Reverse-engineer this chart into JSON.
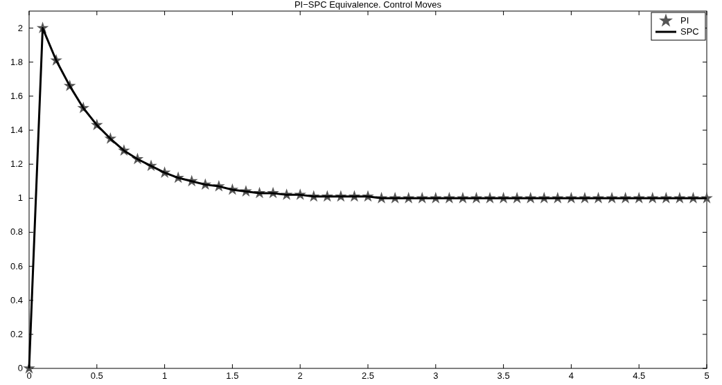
{
  "chart_data": {
    "type": "line",
    "title": "PI−SPC Equivalence. Control Moves",
    "x": [
      0,
      0.1,
      0.2,
      0.3,
      0.4,
      0.5,
      0.6,
      0.7,
      0.8,
      0.9,
      1,
      1.1,
      1.2,
      1.3,
      1.4,
      1.5,
      1.6,
      1.7,
      1.8,
      1.9,
      2,
      2.1,
      2.2,
      2.3,
      2.4,
      2.5,
      2.6,
      2.7,
      2.8,
      2.9,
      3,
      3.1,
      3.2,
      3.3,
      3.4,
      3.5,
      3.6,
      3.7,
      3.8,
      3.9,
      4,
      4.1,
      4.2,
      4.3,
      4.4,
      4.5,
      4.6,
      4.7,
      4.8,
      4.9,
      5
    ],
    "series": [
      {
        "name": "PI",
        "type": "scatter",
        "marker": "star",
        "color": "#555555",
        "values": [
          0,
          2,
          1.81,
          1.66,
          1.53,
          1.43,
          1.35,
          1.28,
          1.23,
          1.19,
          1.15,
          1.12,
          1.1,
          1.08,
          1.07,
          1.05,
          1.04,
          1.03,
          1.03,
          1.02,
          1.02,
          1.01,
          1.01,
          1.01,
          1.01,
          1.01,
          1,
          1,
          1,
          1,
          1,
          1,
          1,
          1,
          1,
          1,
          1,
          1,
          1,
          1,
          1,
          1,
          1,
          1,
          1,
          1,
          1,
          1,
          1,
          1,
          1
        ]
      },
      {
        "name": "SPC",
        "line_style": "solid",
        "color": "#000000",
        "values": [
          0,
          2,
          1.81,
          1.66,
          1.53,
          1.43,
          1.35,
          1.28,
          1.23,
          1.19,
          1.15,
          1.12,
          1.1,
          1.08,
          1.07,
          1.05,
          1.04,
          1.03,
          1.03,
          1.02,
          1.02,
          1.01,
          1.01,
          1.01,
          1.01,
          1.01,
          1,
          1,
          1,
          1,
          1,
          1,
          1,
          1,
          1,
          1,
          1,
          1,
          1,
          1,
          1,
          1,
          1,
          1,
          1,
          1,
          1,
          1,
          1,
          1,
          1
        ]
      }
    ],
    "xlim": [
      0,
      5
    ],
    "xticks": [
      0,
      0.5,
      1,
      1.5,
      2,
      2.5,
      3,
      3.5,
      4,
      4.5,
      5
    ],
    "ylim": [
      0,
      2.1
    ],
    "yticks": [
      0,
      0.2,
      0.4,
      0.6,
      0.8,
      1,
      1.2,
      1.4,
      1.6,
      1.8,
      2
    ],
    "legend": "top right"
  }
}
